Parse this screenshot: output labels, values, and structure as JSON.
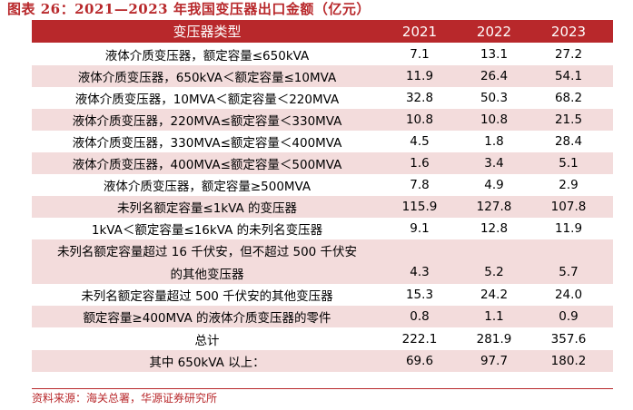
{
  "title": "图表 26：2021—2023 年我国变压器出口金额（亿元）",
  "header": [
    "变压器类型",
    "2021",
    "2022",
    "2023"
  ],
  "rows": [
    {
      "name": "液体介质变压器，额定容量≤650kVA",
      "v": [
        "7.1",
        "13.1",
        "27.2"
      ]
    },
    {
      "name": "液体介质变压器，650kVA＜额定容量≤10MVA",
      "v": [
        "11.9",
        "26.4",
        "54.1"
      ]
    },
    {
      "name": "液体介质变压器，10MVA＜额定容量＜220MVA",
      "v": [
        "32.8",
        "50.3",
        "68.2"
      ]
    },
    {
      "name": "液体介质变压器，220MVA≤额定容量＜330MVA",
      "v": [
        "10.8",
        "10.8",
        "21.5"
      ]
    },
    {
      "name": "液体介质变压器，330MVA≤额定容量＜400MVA",
      "v": [
        "4.5",
        "1.8",
        "28.4"
      ]
    },
    {
      "name": "液体介质变压器，400MVA≤额定容量＜500MVA",
      "v": [
        "1.6",
        "3.4",
        "5.1"
      ]
    },
    {
      "name": "液体介质变压器，额定容量≥500MVA",
      "v": [
        "7.8",
        "4.9",
        "2.9"
      ]
    },
    {
      "name": "未列名额定容量≤1kVA 的变压器",
      "v": [
        "115.9",
        "127.8",
        "107.8"
      ]
    },
    {
      "name": "1kVA＜额定容量≤16kVA 的未列名变压器",
      "v": [
        "9.1",
        "12.8",
        "11.9"
      ]
    },
    {
      "name_line1": "未列名额定容量超过 16 千伏安，但不超过 500 千伏安",
      "name_line2": "的其他变压器",
      "v": [
        "4.3",
        "5.2",
        "5.7"
      ]
    },
    {
      "name": "未列名额定容量超过 500 千伏安的其他变压器",
      "v": [
        "15.3",
        "24.2",
        "24.0"
      ]
    },
    {
      "name": "额定容量≥400MVA 的液体介质变压器的零件",
      "v": [
        "0.8",
        "1.1",
        "0.9"
      ]
    },
    {
      "name": "总计",
      "v": [
        "222.1",
        "281.9",
        "357.6"
      ]
    },
    {
      "name": "其中 650kVA 以上：",
      "v": [
        "69.6",
        "97.7",
        "180.2"
      ]
    }
  ],
  "source": "资料来源：海关总署，华源证券研究所",
  "colors": {
    "accent": "#b8282b",
    "shade": "#f3dcdc"
  }
}
